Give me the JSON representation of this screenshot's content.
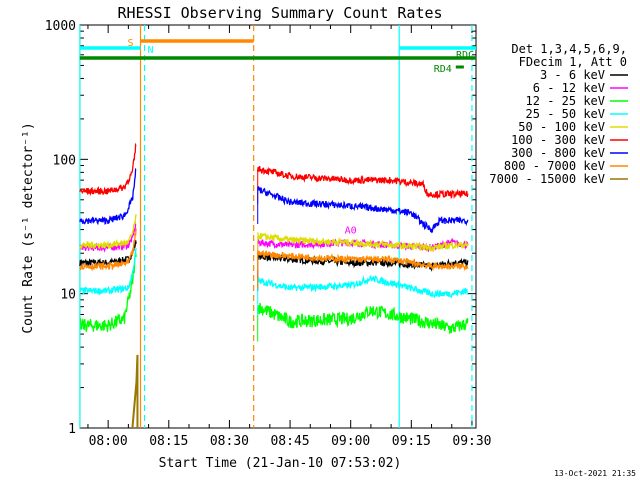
{
  "chart_data": {
    "type": "line",
    "title": "RHESSI Observing Summary Count Rates",
    "xlabel": "Start Time (21-Jan-10 07:53:02)",
    "ylabel": "Count Rate (s⁻¹ detector⁻¹)",
    "ylim": [
      1,
      1000
    ],
    "yscale": "log",
    "xlim": [
      "07:53:02",
      "09:31:00"
    ],
    "x_ticks": [
      "08:00",
      "08:15",
      "08:30",
      "08:45",
      "09:00",
      "09:15",
      "09:30"
    ],
    "y_ticks": [
      "1",
      "10",
      "100",
      "1000"
    ],
    "footer": "13-Oct-2021 21:35",
    "legend": {
      "header": [
        "Det 1,3,4,5,6,9,",
        "FDecim 1, Att 0"
      ],
      "placement": "right"
    },
    "series": [
      {
        "name": "3 - 6 keV",
        "color": "#000000",
        "pre_x": [
          "07:53",
          "08:00",
          "08:05",
          "08:06",
          "08:07"
        ],
        "pre_y": [
          17,
          17,
          18,
          20,
          25
        ],
        "post_x": [
          "08:37",
          "08:45",
          "09:00",
          "09:10",
          "09:20",
          "09:25",
          "09:29"
        ],
        "post_y": [
          19,
          18,
          17,
          17,
          16,
          17,
          17
        ]
      },
      {
        "name": "6 - 12 keV",
        "color": "#ff00ff",
        "pre_x": [
          "07:53",
          "08:00",
          "08:05",
          "08:06",
          "08:07"
        ],
        "pre_y": [
          22,
          22,
          23,
          26,
          34
        ],
        "post_x": [
          "08:37",
          "08:45",
          "09:00",
          "09:10",
          "09:20",
          "09:25",
          "09:29"
        ],
        "post_y": [
          24,
          23,
          24,
          23,
          22,
          24,
          23
        ]
      },
      {
        "name": "12 - 25 keV",
        "color": "#00ff00",
        "pre_x": [
          "07:53",
          "08:00",
          "08:04",
          "08:06",
          "08:07"
        ],
        "pre_y": [
          5.8,
          5.8,
          6.5,
          12,
          22
        ],
        "post_x": [
          "08:37",
          "08:45",
          "09:00",
          "09:05",
          "09:10",
          "09:20",
          "09:25",
          "09:29"
        ],
        "post_y": [
          8,
          6.2,
          6.5,
          7.5,
          7,
          6,
          5.5,
          6
        ]
      },
      {
        "name": "25 - 50 keV",
        "color": "#00ffff",
        "pre_x": [
          "07:53",
          "08:00",
          "08:05",
          "08:06",
          "08:07"
        ],
        "pre_y": [
          10.5,
          10.5,
          11,
          14,
          22
        ],
        "post_x": [
          "08:37",
          "08:45",
          "09:00",
          "09:05",
          "09:10",
          "09:20",
          "09:25",
          "09:29"
        ],
        "post_y": [
          12.5,
          11,
          11.5,
          13,
          12,
          10,
          10,
          10.5
        ]
      },
      {
        "name": "50 - 100 keV",
        "color": "#dddd00",
        "pre_x": [
          "07:53",
          "08:00",
          "08:05",
          "08:06",
          "08:07"
        ],
        "pre_y": [
          23,
          23,
          24,
          28,
          38
        ],
        "post_x": [
          "08:37",
          "08:45",
          "09:00",
          "09:10",
          "09:20",
          "09:25",
          "09:29"
        ],
        "post_y": [
          27,
          25,
          24,
          23,
          22,
          23,
          23
        ]
      },
      {
        "name": "100 - 300 keV",
        "color": "#ff0000",
        "pre_x": [
          "07:53",
          "08:00",
          "08:04",
          "08:06",
          "08:07"
        ],
        "pre_y": [
          58,
          58,
          62,
          80,
          135
        ],
        "post_x": [
          "08:37",
          "08:45",
          "09:00",
          "09:10",
          "09:18",
          "09:19",
          "09:25",
          "09:29"
        ],
        "post_y": [
          85,
          75,
          70,
          70,
          65,
          55,
          55,
          55
        ]
      },
      {
        "name": "300 - 800 keV",
        "color": "#0000ff",
        "pre_x": [
          "07:53",
          "08:00",
          "08:04",
          "08:06",
          "08:07"
        ],
        "pre_y": [
          35,
          35,
          38,
          50,
          90
        ],
        "post_x": [
          "08:37",
          "08:45",
          "09:00",
          "09:10",
          "09:15",
          "09:18",
          "09:20",
          "09:22",
          "09:29"
        ],
        "post_y": [
          60,
          48,
          45,
          42,
          40,
          33,
          30,
          35,
          35
        ]
      },
      {
        "name": "800 - 7000 keV",
        "color": "#ff8800",
        "pre_x": [
          "07:53",
          "08:00",
          "08:05",
          "08:06",
          "08:07"
        ],
        "pre_y": [
          16,
          16,
          17,
          20,
          30
        ],
        "post_x": [
          "08:37",
          "08:45",
          "09:00",
          "09:10",
          "09:20",
          "09:25",
          "09:29"
        ],
        "post_y": [
          20,
          19,
          18,
          18,
          16,
          16,
          16
        ]
      },
      {
        "name": "7000 - 15000 keV",
        "color": "#997700",
        "spike_x": [
          "08:06",
          "08:07",
          "08:07"
        ],
        "spike_y": [
          1,
          2.2,
          3.5
        ]
      }
    ],
    "flags": [
      {
        "label": "S",
        "color": "#ff8800",
        "start": "08:08",
        "end": "08:36"
      },
      {
        "label": "N",
        "color": "#00ffff",
        "start": "07:53",
        "end": "08:08"
      },
      {
        "label": "N",
        "color": "#00ffff",
        "start": "09:12",
        "end": "09:31",
        "show_label": false
      },
      {
        "label": "RD4",
        "color": "#008800",
        "start": "09:26",
        "end": "09:28"
      },
      {
        "label": "RDC",
        "color": "#008800",
        "start": "07:53",
        "end": "09:31"
      }
    ],
    "vlines": [
      {
        "time": "08:08",
        "color": "#ff8800",
        "style": "solid"
      },
      {
        "time": "08:09",
        "color": "#00ffff",
        "style": "dashed"
      },
      {
        "time": "08:36",
        "color": "#ff8800",
        "style": "dashed"
      },
      {
        "time": "09:12",
        "color": "#00ffff",
        "style": "solid"
      },
      {
        "time": "09:30",
        "color": "#00ffff",
        "style": "dashed"
      },
      {
        "time": "07:53",
        "color": "#00ffff",
        "style": "solid"
      }
    ],
    "annotation": {
      "label": "A0",
      "color": "#ff00ff",
      "time": "09:00",
      "value": 30
    }
  }
}
